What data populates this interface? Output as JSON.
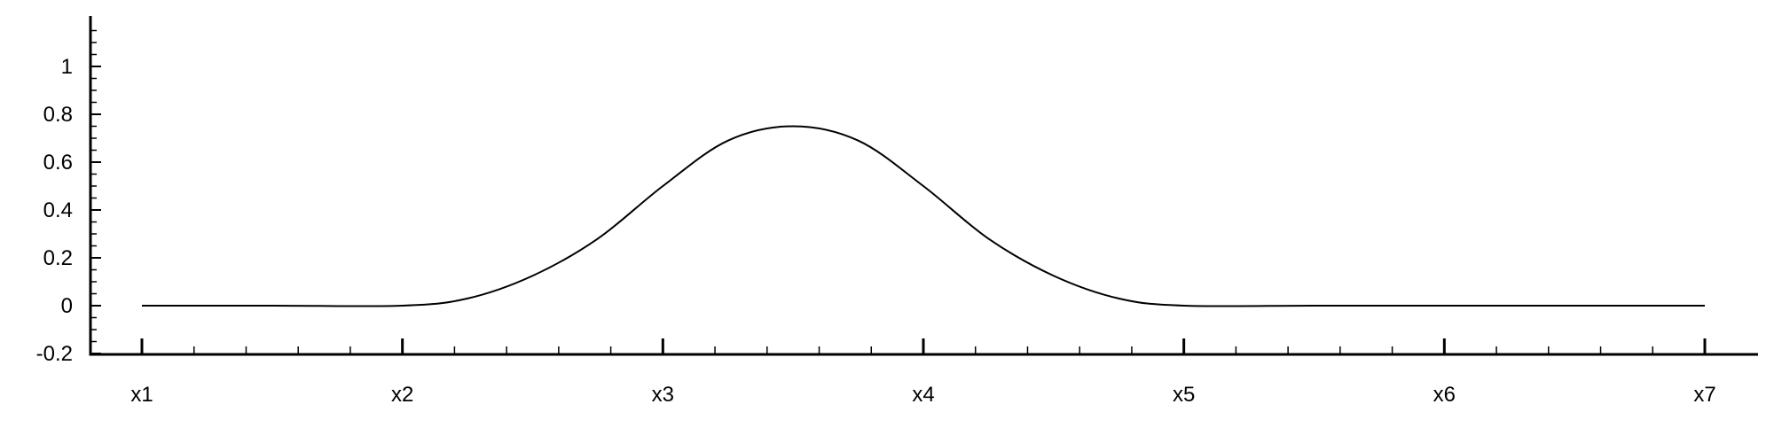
{
  "chart_data": {
    "type": "line",
    "title": "",
    "xlabel": "",
    "ylabel": "",
    "x_ticks": [
      {
        "x": 1,
        "label": "x1"
      },
      {
        "x": 2,
        "label": "x2"
      },
      {
        "x": 3,
        "label": "x3"
      },
      {
        "x": 4,
        "label": "x4"
      },
      {
        "x": 5,
        "label": "x5"
      },
      {
        "x": 6,
        "label": "x6"
      },
      {
        "x": 7,
        "label": "x7"
      }
    ],
    "y_ticks": [
      {
        "y": -0.2,
        "label": "-0.2"
      },
      {
        "y": 0,
        "label": "0"
      },
      {
        "y": 0.2,
        "label": "0.2"
      },
      {
        "y": 0.4,
        "label": "0.4"
      },
      {
        "y": 0.6,
        "label": "0.6"
      },
      {
        "y": 0.8,
        "label": "0.8"
      },
      {
        "y": 1,
        "label": "1"
      }
    ],
    "xlim": [
      0.8,
      7.2
    ],
    "ylim": [
      -0.2,
      1.2
    ],
    "grid": false,
    "legend": "none",
    "line_color": "#000000",
    "series": [
      {
        "x": [
          1,
          1.5,
          2,
          2.25,
          2.5,
          2.75,
          3,
          3.25,
          3.5,
          3.75,
          4,
          4.25,
          4.5,
          4.75,
          5,
          5.5,
          6,
          6.5,
          7
        ],
        "y": [
          0,
          0,
          0,
          0.03,
          0.125,
          0.28,
          0.5,
          0.69,
          0.75,
          0.69,
          0.5,
          0.28,
          0.125,
          0.03,
          0,
          0,
          0,
          0,
          0
        ]
      }
    ]
  }
}
